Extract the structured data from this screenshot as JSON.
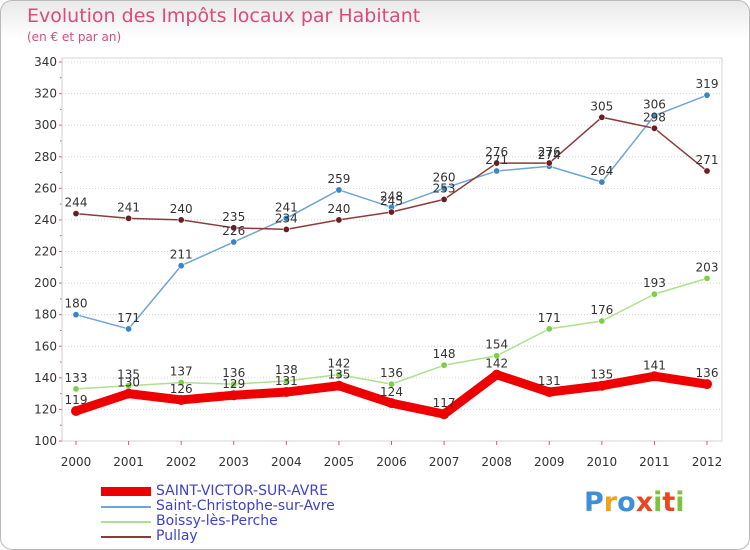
{
  "header": {
    "title": "Evolution des Impôts locaux par Habitant",
    "subtitle": "(en € et par an)"
  },
  "logo": {
    "text": "Proxiti"
  },
  "chart_data": {
    "type": "line",
    "title": "Evolution des Impôts locaux par Habitant",
    "subtitle": "(en € et par an)",
    "xlabel": "",
    "ylabel": "",
    "x": [
      "2000",
      "2001",
      "2002",
      "2003",
      "2004",
      "2005",
      "2006",
      "2007",
      "2008",
      "2009",
      "2010",
      "2011",
      "2012"
    ],
    "ylim": [
      100,
      340
    ],
    "yticks": [
      100,
      120,
      140,
      160,
      180,
      200,
      220,
      240,
      260,
      280,
      300,
      320,
      340
    ],
    "grid": "horizontal dotted",
    "legend_position": "bottom-left",
    "series": [
      {
        "name": "SAINT-VICTOR-SUR-AVRE",
        "color": "#ee0000",
        "emphasis": true,
        "values": [
          119,
          130,
          126,
          129,
          131,
          135,
          124,
          117,
          142,
          131,
          135,
          141,
          136
        ]
      },
      {
        "name": "Saint-Christophe-sur-Avre",
        "color": "#6ea5d6",
        "marker": "#3a85c8",
        "values": [
          180,
          171,
          211,
          226,
          241,
          259,
          248,
          260,
          271,
          274,
          264,
          306,
          319
        ]
      },
      {
        "name": "Boissy-lès-Perche",
        "color": "#aee08e",
        "marker": "#7dd045",
        "values": [
          133,
          135,
          137,
          136,
          138,
          142,
          136,
          148,
          154,
          171,
          176,
          193,
          203
        ]
      },
      {
        "name": "Pullay",
        "color": "#8c3a3a",
        "marker": "#6b1f24",
        "values": [
          244,
          241,
          240,
          235,
          234,
          240,
          245,
          253,
          276,
          276,
          305,
          298,
          271
        ]
      }
    ],
    "data_labels": [
      [
        119,
        130,
        126,
        129,
        131,
        135,
        124,
        117,
        142,
        131,
        135,
        141,
        136
      ],
      [
        180,
        171,
        211,
        226,
        241,
        259,
        248,
        260,
        271,
        274,
        264,
        306,
        319
      ],
      [
        133,
        135,
        137,
        136,
        138,
        142,
        136,
        148,
        154,
        171,
        176,
        193,
        203
      ],
      [
        244,
        241,
        240,
        235,
        234,
        240,
        245,
        253,
        276,
        276,
        305,
        298,
        271
      ]
    ]
  }
}
